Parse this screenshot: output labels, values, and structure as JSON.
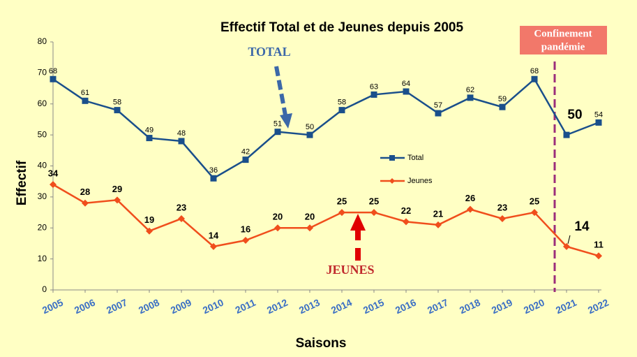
{
  "chart_data": {
    "type": "line",
    "title": "Effectif Total et de Jeunes depuis 2005",
    "x_label": "Saisons",
    "y_label": "Effectif",
    "categories": [
      "2005",
      "2006",
      "2007",
      "2008",
      "2009",
      "2010",
      "2011",
      "2012",
      "2013",
      "2014",
      "2015",
      "2016",
      "2017",
      "2018",
      "2019",
      "2020",
      "2021",
      "2022"
    ],
    "series": [
      {
        "name": "Total",
        "color": "#1a4f8b",
        "values": [
          68,
          61,
          58,
          49,
          48,
          36,
          42,
          51,
          50,
          58,
          63,
          64,
          57,
          62,
          59,
          68,
          50,
          54
        ]
      },
      {
        "name": "Jeunes",
        "color": "#f04e1c",
        "values": [
          34,
          28,
          29,
          19,
          23,
          14,
          16,
          20,
          20,
          25,
          25,
          22,
          21,
          26,
          23,
          25,
          14,
          11
        ]
      }
    ],
    "annotations": [
      "TOTAL",
      "JEUNES",
      "Confinement",
      "pandémie"
    ],
    "ylim": [
      0,
      80
    ],
    "yticks": [
      0,
      10,
      20,
      30,
      40,
      50,
      60,
      70,
      80
    ],
    "grid": false
  }
}
